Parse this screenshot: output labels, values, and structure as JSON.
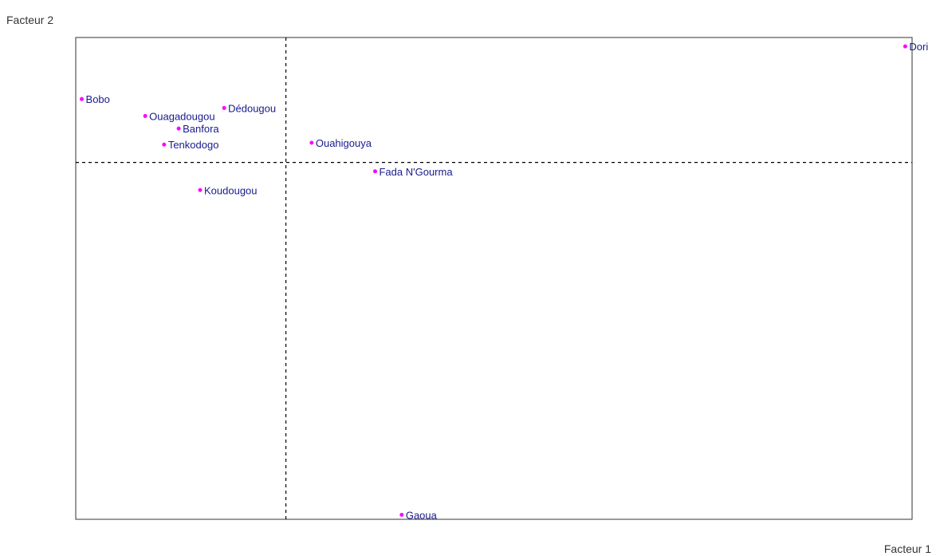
{
  "chart_data": {
    "type": "scatter",
    "xlabel": "Facteur 1",
    "ylabel": "Facteur 2",
    "grid": false,
    "reference_lines": {
      "x": 0,
      "y": 0
    },
    "xlim": [
      -0.245,
      0.73
    ],
    "ylim": [
      -0.4,
      0.14
    ],
    "points": [
      {
        "label": "Dori",
        "x": 0.722,
        "y": 0.13
      },
      {
        "label": "Bobo",
        "x": -0.238,
        "y": 0.071
      },
      {
        "label": "Dédougou",
        "x": -0.072,
        "y": 0.061
      },
      {
        "label": "Ouagadougou",
        "x": -0.164,
        "y": 0.052
      },
      {
        "label": "Banfora",
        "x": -0.125,
        "y": 0.038
      },
      {
        "label": "Tenkodogo",
        "x": -0.142,
        "y": 0.02
      },
      {
        "label": "Ouahigouya",
        "x": 0.03,
        "y": 0.022
      },
      {
        "label": "Fada N'Gourma",
        "x": 0.104,
        "y": -0.01
      },
      {
        "label": "Koudougou",
        "x": -0.1,
        "y": -0.031
      },
      {
        "label": "Gaoua",
        "x": 0.135,
        "y": -0.395
      }
    ],
    "point_color": "#ff00ff",
    "label_color": "#1a1a8c"
  }
}
